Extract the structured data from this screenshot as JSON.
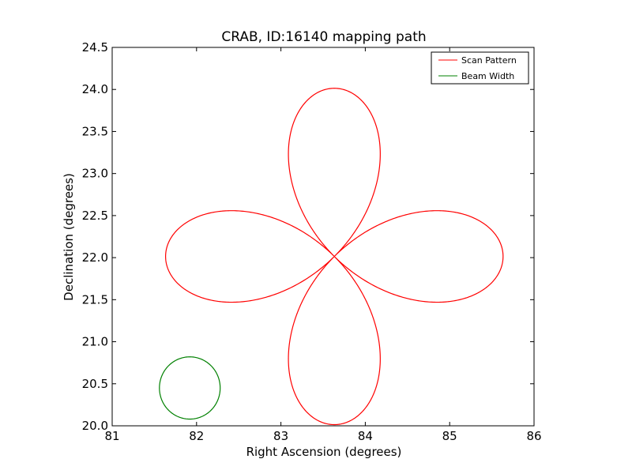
{
  "chart_data": {
    "type": "line",
    "title": "CRAB, ID:16140 mapping path",
    "xlabel": "Right Ascension (degrees)",
    "ylabel": "Declination (degrees)",
    "xlim": [
      81,
      86
    ],
    "ylim": [
      20.0,
      24.5
    ],
    "x_ticks": [
      "81",
      "82",
      "83",
      "84",
      "85",
      "86"
    ],
    "y_ticks": [
      "20.0",
      "20.5",
      "21.0",
      "21.5",
      "22.0",
      "22.5",
      "23.0",
      "23.5",
      "24.0",
      "24.5"
    ],
    "grid": false,
    "legend_position": "top-right",
    "series": [
      {
        "name": "Scan Pattern",
        "color": "#ff0000",
        "pattern": "four-petal rose",
        "center": [
          83.633,
          22.014
        ],
        "petal_reach": 2.0
      },
      {
        "name": "Beam Width",
        "color": "#008000",
        "pattern": "circle",
        "center": [
          81.92,
          20.45
        ],
        "radius_ra": 0.36,
        "radius_dec": 0.37
      }
    ]
  }
}
